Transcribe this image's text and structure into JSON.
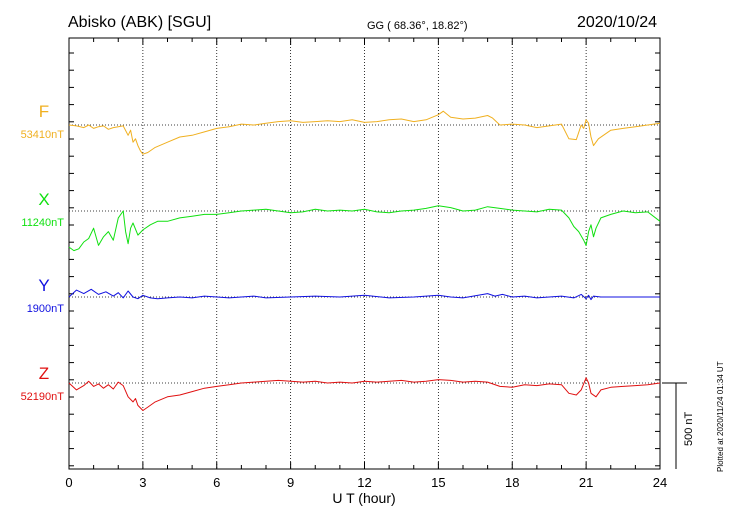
{
  "header": {
    "station": "Abisko (ABK)  [SGU]",
    "coords": "GG ( 68.36°,  18.82°)",
    "date": "2020/10/24"
  },
  "scale_label": "500 nT",
  "plotted_note": "Plotted at 2020/11/24 01:34 UT",
  "colors": {
    "F": "#f0b020",
    "X": "#10e010",
    "Y": "#1010e0",
    "Z": "#e01010"
  },
  "chart_data": {
    "type": "line",
    "title": "Abisko (ABK)  [SGU]",
    "xlabel": "U T (hour)",
    "ylabel": "",
    "xlim": [
      0,
      24
    ],
    "xticks": [
      0,
      3,
      6,
      9,
      12,
      15,
      18,
      21,
      24
    ],
    "xtick_labels": [
      "0",
      "3",
      "6",
      "9",
      "12",
      "15",
      "18",
      "21",
      "24"
    ],
    "y_scale_nT_per_bar": 500,
    "grid": true,
    "series": [
      {
        "name": "F",
        "baseline_label": "53410nT",
        "baseline_nT": 53410,
        "color": "#f0b020",
        "x": [
          0,
          0.3,
          0.6,
          0.8,
          1,
          1.2,
          1.4,
          1.6,
          1.8,
          2,
          2.2,
          2.4,
          2.5,
          2.6,
          2.7,
          2.8,
          2.9,
          3,
          3.2,
          3.5,
          4,
          4.5,
          5,
          5.5,
          6,
          6.5,
          7,
          7.5,
          8,
          8.5,
          9,
          9.5,
          10,
          10.5,
          11,
          11.5,
          12,
          12.5,
          13,
          13.5,
          14,
          14.5,
          15,
          15.2,
          15.5,
          16,
          16.5,
          17,
          17.2,
          17.5,
          18,
          18.5,
          19,
          19.5,
          20,
          20.3,
          20.6,
          20.8,
          20.9,
          21,
          21.1,
          21.2,
          21.3,
          21.5,
          22,
          22.5,
          23,
          23.5,
          24
        ],
        "y": [
          0,
          -5,
          -15,
          0,
          -20,
          -10,
          -5,
          -25,
          -15,
          -10,
          -5,
          -60,
          -30,
          -100,
          -80,
          -120,
          -150,
          -170,
          -160,
          -130,
          -100,
          -70,
          -60,
          -40,
          -20,
          -10,
          5,
          0,
          10,
          20,
          25,
          15,
          20,
          25,
          20,
          30,
          15,
          20,
          30,
          35,
          20,
          30,
          60,
          80,
          45,
          35,
          40,
          55,
          40,
          0,
          5,
          0,
          -15,
          -5,
          5,
          -80,
          -85,
          0,
          -20,
          30,
          10,
          -70,
          -120,
          -80,
          -30,
          -20,
          -10,
          0,
          10
        ]
      },
      {
        "name": "X",
        "baseline_label": "11240nT",
        "baseline_nT": 11240,
        "color": "#10e010",
        "x": [
          0,
          0.2,
          0.4,
          0.6,
          0.8,
          1,
          1.2,
          1.4,
          1.6,
          1.8,
          2,
          2.2,
          2.3,
          2.4,
          2.5,
          2.6,
          2.8,
          3,
          3.3,
          3.6,
          4,
          4.5,
          5,
          5.5,
          6,
          6.5,
          7,
          7.5,
          8,
          8.5,
          9,
          9.5,
          10,
          10.5,
          11,
          11.5,
          12,
          12.5,
          13,
          13.5,
          14,
          14.5,
          15,
          15.5,
          16,
          16.5,
          17,
          17.5,
          18,
          18.5,
          19,
          19.5,
          20,
          20.3,
          20.5,
          20.7,
          20.9,
          21,
          21.1,
          21.2,
          21.3,
          21.4,
          21.6,
          22,
          22.5,
          23,
          23.5,
          24
        ],
        "y": [
          -210,
          -230,
          -220,
          -180,
          -160,
          -100,
          -200,
          -150,
          -120,
          -170,
          -40,
          0,
          -120,
          -190,
          -100,
          -70,
          -140,
          -110,
          -80,
          -60,
          -60,
          -40,
          -30,
          -20,
          -20,
          -10,
          0,
          5,
          10,
          0,
          -10,
          -5,
          10,
          0,
          5,
          0,
          10,
          -5,
          -10,
          0,
          5,
          15,
          30,
          20,
          0,
          5,
          25,
          15,
          5,
          0,
          -5,
          10,
          5,
          -40,
          -90,
          -120,
          -170,
          -200,
          -120,
          -80,
          -150,
          -100,
          -40,
          -20,
          0,
          -10,
          -5,
          -60
        ]
      },
      {
        "name": "Y",
        "baseline_label": "1900nT",
        "baseline_nT": 1900,
        "color": "#1010e0",
        "x": [
          0,
          0.3,
          0.6,
          0.9,
          1.2,
          1.5,
          1.8,
          2,
          2.2,
          2.4,
          2.6,
          2.8,
          3,
          3.3,
          3.6,
          4,
          4.5,
          5,
          5.5,
          6,
          6.5,
          7,
          7.5,
          8,
          9,
          10,
          11,
          12,
          13,
          14,
          15,
          15.5,
          16,
          17,
          17.3,
          17.6,
          18,
          18.5,
          19,
          19.5,
          20,
          20.5,
          20.8,
          21,
          21.1,
          21.2,
          21.3,
          21.6,
          22,
          23,
          24
        ],
        "y": [
          0,
          40,
          20,
          45,
          15,
          30,
          5,
          25,
          -5,
          35,
          0,
          -10,
          10,
          -5,
          -10,
          -5,
          0,
          -5,
          5,
          0,
          -5,
          0,
          5,
          -5,
          0,
          5,
          0,
          10,
          -5,
          0,
          10,
          0,
          -5,
          20,
          5,
          15,
          0,
          5,
          -5,
          0,
          5,
          -5,
          15,
          -10,
          10,
          -15,
          5,
          0,
          0,
          0,
          0
        ]
      },
      {
        "name": "Z",
        "baseline_label": "52190nT",
        "baseline_nT": 52190,
        "color": "#e01010",
        "x": [
          0,
          0.3,
          0.6,
          0.8,
          1,
          1.2,
          1.4,
          1.6,
          1.8,
          2,
          2.2,
          2.4,
          2.6,
          2.7,
          2.8,
          3,
          3.2,
          3.5,
          4,
          4.5,
          5,
          5.5,
          6,
          6.5,
          7,
          7.5,
          8,
          8.5,
          9,
          9.5,
          10,
          10.5,
          11,
          11.5,
          12,
          12.5,
          13,
          13.5,
          14,
          14.5,
          15,
          15.5,
          16,
          16.5,
          17,
          17.5,
          18,
          18.5,
          19,
          19.5,
          20,
          20.3,
          20.6,
          20.8,
          21,
          21.1,
          21.2,
          21.4,
          21.6,
          22,
          22.5,
          23,
          23.5,
          24
        ],
        "y": [
          0,
          -40,
          -15,
          10,
          -20,
          -5,
          -30,
          -10,
          -35,
          5,
          -15,
          -80,
          -110,
          -90,
          -130,
          -160,
          -140,
          -110,
          -80,
          -70,
          -50,
          -30,
          -20,
          -10,
          0,
          5,
          10,
          15,
          10,
          5,
          10,
          0,
          5,
          0,
          10,
          5,
          10,
          15,
          5,
          10,
          20,
          15,
          5,
          10,
          5,
          -20,
          -25,
          -10,
          -15,
          -5,
          -10,
          -60,
          -70,
          -40,
          30,
          0,
          -60,
          -80,
          -40,
          -25,
          -20,
          -15,
          -10,
          0
        ]
      }
    ]
  }
}
